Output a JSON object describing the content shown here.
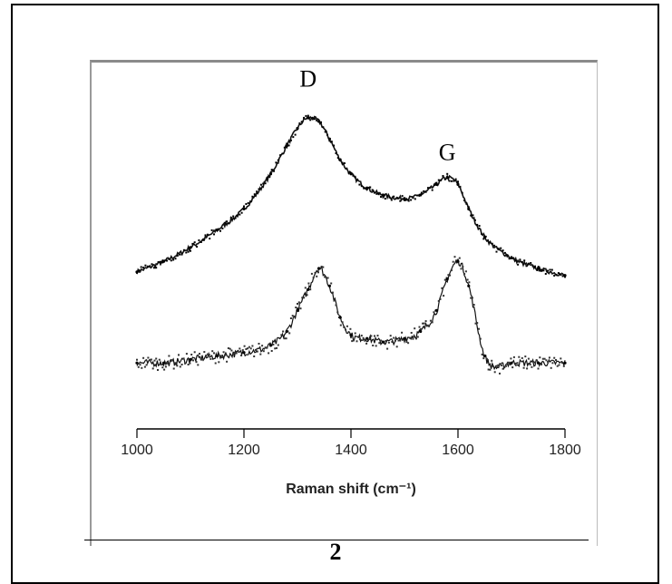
{
  "figure": {
    "number": "2"
  },
  "chart_data": {
    "type": "scatter",
    "title": "",
    "xlabel": "Raman shift (cm⁻¹)",
    "ylabel": "",
    "xlim": [
      1000,
      1800
    ],
    "ylim": [
      0,
      1
    ],
    "x_ticks": [
      "1000",
      "1200",
      "1400",
      "1600",
      "1800"
    ],
    "grid": false,
    "annotations": [
      {
        "text": "D",
        "x": 1320,
        "y": 0.95
      },
      {
        "text": "G",
        "x": 1580,
        "y": 0.74
      }
    ],
    "series": [
      {
        "x": [
          1000,
          1050,
          1100,
          1150,
          1200,
          1250,
          1280,
          1300,
          1320,
          1340,
          1360,
          1380,
          1400,
          1430,
          1460,
          1500,
          1530,
          1560,
          1580,
          1600,
          1620,
          1650,
          1700,
          1750,
          1800
        ],
        "values": [
          0.42,
          0.45,
          0.49,
          0.54,
          0.6,
          0.7,
          0.78,
          0.83,
          0.86,
          0.85,
          0.8,
          0.74,
          0.7,
          0.66,
          0.64,
          0.63,
          0.64,
          0.67,
          0.69,
          0.67,
          0.6,
          0.52,
          0.46,
          0.43,
          0.41
        ]
      },
      {
        "x": [
          1000,
          1050,
          1100,
          1150,
          1200,
          1250,
          1280,
          1300,
          1320,
          1340,
          1360,
          1380,
          1400,
          1430,
          1460,
          1500,
          1530,
          1560,
          1580,
          1600,
          1620,
          1650,
          1700,
          1750,
          1800
        ],
        "values": [
          0.16,
          0.16,
          0.17,
          0.18,
          0.19,
          0.21,
          0.25,
          0.31,
          0.37,
          0.43,
          0.38,
          0.29,
          0.24,
          0.23,
          0.22,
          0.23,
          0.25,
          0.31,
          0.4,
          0.45,
          0.38,
          0.18,
          0.16,
          0.16,
          0.16
        ]
      }
    ]
  }
}
